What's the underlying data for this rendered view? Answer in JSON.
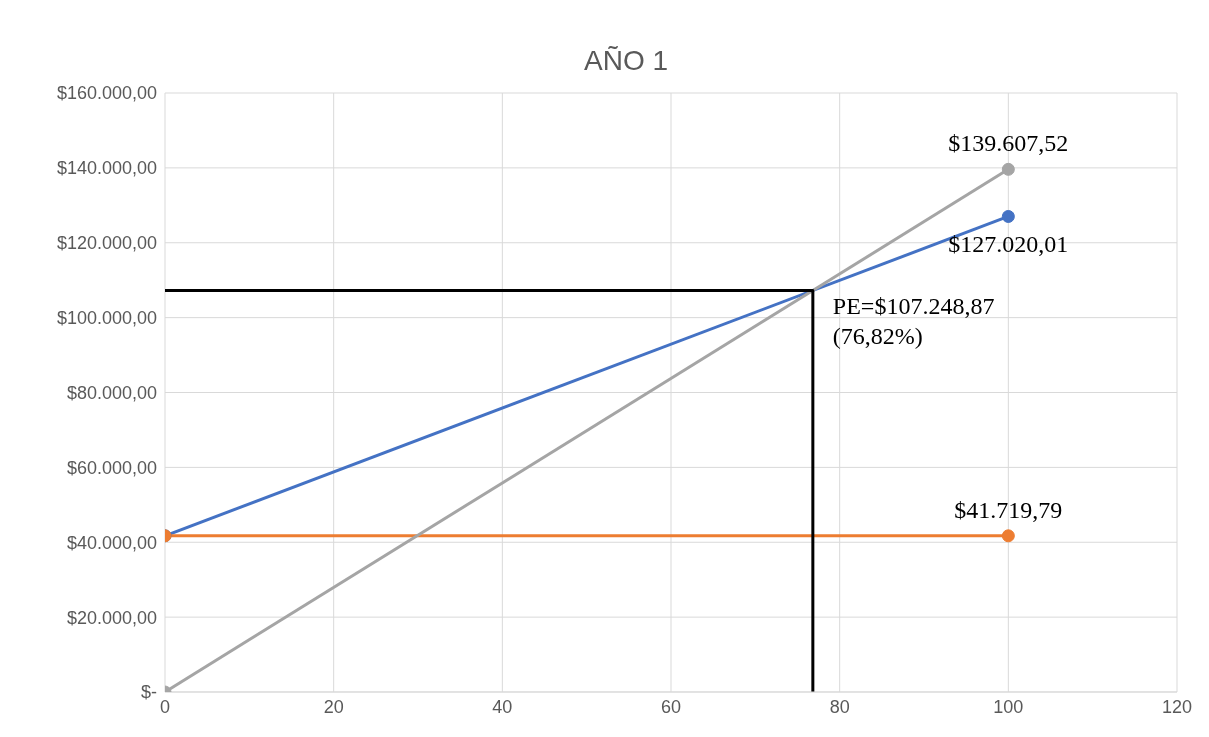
{
  "chart_data": {
    "type": "line",
    "title": "AÑO 1",
    "xlim": [
      0,
      120
    ],
    "xticks": [
      0,
      20,
      40,
      60,
      80,
      100,
      120
    ],
    "ylim": [
      0,
      160000
    ],
    "yticks": [
      {
        "value": 0,
        "label": "$-"
      },
      {
        "value": 20000,
        "label": "$20.000,00"
      },
      {
        "value": 40000,
        "label": "$40.000,00"
      },
      {
        "value": 60000,
        "label": "$60.000,00"
      },
      {
        "value": 80000,
        "label": "$80.000,00"
      },
      {
        "value": 100000,
        "label": "$100.000,00"
      },
      {
        "value": 120000,
        "label": "$120.000,00"
      },
      {
        "value": 140000,
        "label": "$140.000,00"
      },
      {
        "value": 160000,
        "label": "$160.000,00"
      }
    ],
    "grid": true,
    "marker": "circle",
    "line_style": "solid",
    "series": [
      {
        "color": "#4472c4",
        "x": [
          0,
          100
        ],
        "values": [
          41719.79,
          127020.01
        ],
        "value_labels": [
          null,
          "$127.020,01"
        ]
      },
      {
        "color": "#ed7d31",
        "x": [
          0,
          100
        ],
        "values": [
          41719.79,
          41719.79
        ],
        "value_labels": [
          null,
          "$41.719,79"
        ]
      },
      {
        "color": "#a5a5a5",
        "x": [
          0,
          100
        ],
        "values": [
          0,
          139607.52
        ],
        "value_labels": [
          null,
          "$139.607,52"
        ]
      },
      {
        "color": "#000000",
        "x": [
          0,
          76.82,
          76.82
        ],
        "values": [
          107248.87,
          107248.87,
          0
        ],
        "marker": "none"
      }
    ],
    "annotations": [
      {
        "text": "PE=$107.248,87 (76,82%)",
        "x": 76.82,
        "y": 107248.87
      }
    ]
  }
}
